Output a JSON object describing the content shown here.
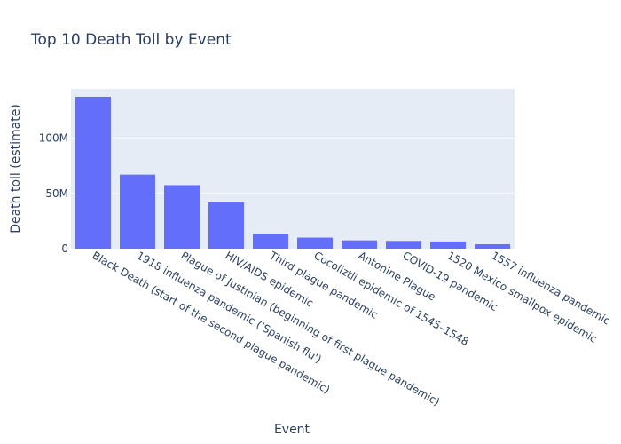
{
  "chart_data": {
    "type": "bar",
    "title": "Top 10 Death Toll by Event",
    "xlabel": "Event",
    "ylabel": "Death toll (estimate)",
    "categories": [
      "Black Death (start of the second plague pandemic)",
      "1918 influenza pandemic ('Spanish flu')",
      "Plague of Justinian (beginning of first plague pandemic)",
      "HIV/AIDS epidemic",
      "Third plague pandemic",
      "Cocoliztli epidemic of 1545–1548",
      "Antonine Plague",
      "COVID-19 pandemic",
      "1520 Mexico smallpox epidemic",
      "1557 influenza pandemic"
    ],
    "values": [
      137500000,
      67000000,
      57500000,
      42000000,
      13500000,
      10000000,
      7500000,
      7000000,
      6500000,
      4000000
    ],
    "ylim": [
      0,
      144700000
    ],
    "yticks": [
      {
        "value": 0,
        "label": "0"
      },
      {
        "value": 50000000,
        "label": "50M"
      },
      {
        "value": 100000000,
        "label": "100M"
      }
    ],
    "grid": true,
    "legend": "none",
    "colors": {
      "bar": "#636efa",
      "plot_bg": "#e5ecf6",
      "grid": "#ffffff",
      "text": "#2a3f5f"
    }
  }
}
